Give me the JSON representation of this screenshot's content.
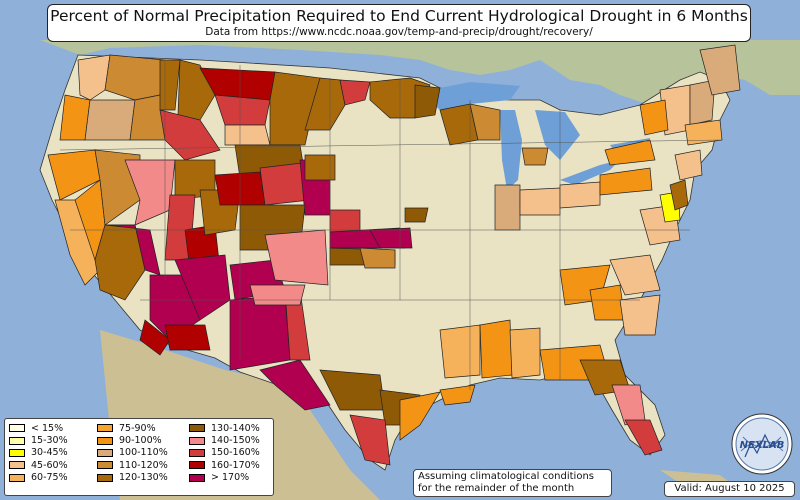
{
  "header": {
    "title": "Percent of Normal Precipitation Required to End Current Hydrological Drought in 6 Months",
    "subtitle": "Data from https://www.ncdc.noaa.gov/temp-and-precip/drought/recovery/"
  },
  "legend": {
    "items": [
      {
        "label": "< 15%",
        "color": "#ffffe5"
      },
      {
        "label": "15-30%",
        "color": "#ffffa8"
      },
      {
        "label": "30-45%",
        "color": "#ffff00"
      },
      {
        "label": "45-60%",
        "color": "#f4c08c"
      },
      {
        "label": "60-75%",
        "color": "#f6b25a"
      },
      {
        "label": "75-90%",
        "color": "#f7a32f"
      },
      {
        "label": "90-100%",
        "color": "#f39414"
      },
      {
        "label": "100-110%",
        "color": "#d9aa7a"
      },
      {
        "label": "110-120%",
        "color": "#cc8a33"
      },
      {
        "label": "120-130%",
        "color": "#a8690b"
      },
      {
        "label": "130-140%",
        "color": "#8f5a05"
      },
      {
        "label": "140-150%",
        "color": "#f28a8a"
      },
      {
        "label": "150-160%",
        "color": "#d23c3c"
      },
      {
        "label": "160-170%",
        "color": "#b00000"
      },
      {
        "label": "> 170%",
        "color": "#b0004f"
      }
    ]
  },
  "note": {
    "line1": "Assuming climatological conditions",
    "line2": "for the remainder of the month"
  },
  "valid": "Valid: August 10 2025",
  "logo": {
    "text": "NEXLAB"
  },
  "colors": {
    "ocean": "#8fb0d8",
    "land": "#e9e3c4",
    "lakes": "#6e9fd6"
  }
}
